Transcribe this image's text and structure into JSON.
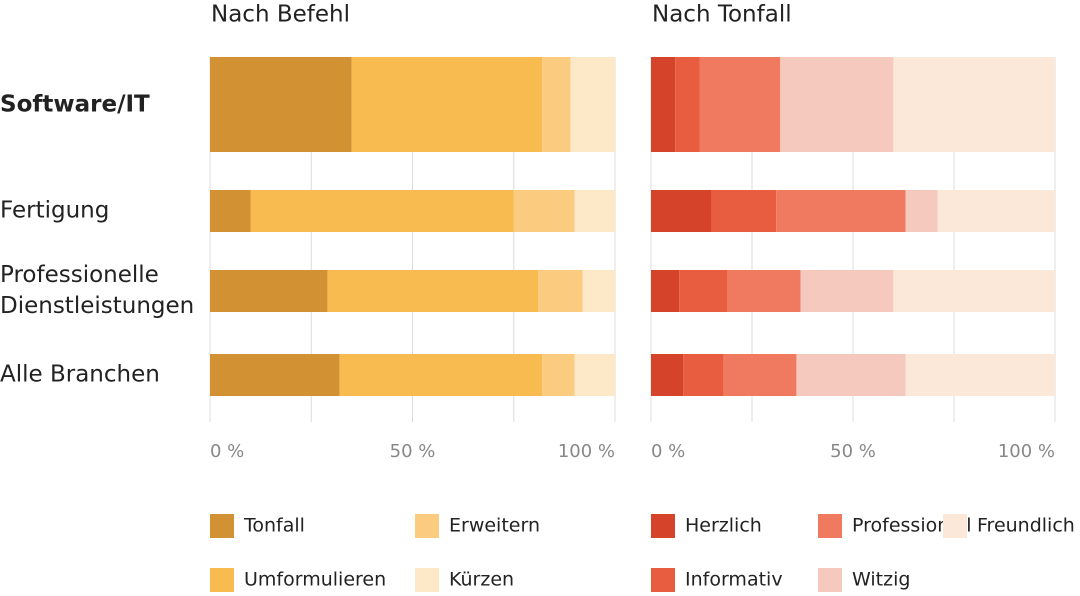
{
  "chart_data": [
    {
      "type": "stacked-bar",
      "orientation": "horizontal",
      "title": "Nach Befehl",
      "categories": [
        "Software/IT",
        "Fertigung",
        "Professionelle Dienstleistungen",
        "Alle Branchen"
      ],
      "series": [
        {
          "name": "Tonfall",
          "color": "#d29234",
          "values": [
            35,
            10,
            29,
            32
          ]
        },
        {
          "name": "Umformulieren",
          "color": "#f8bb50",
          "values": [
            47,
            65,
            52,
            50
          ]
        },
        {
          "name": "Erweitern",
          "color": "#fbcb80",
          "values": [
            7,
            15,
            11,
            8
          ]
        },
        {
          "name": "Kürzen",
          "color": "#fde8c8",
          "values": [
            11,
            10,
            8,
            10
          ]
        }
      ],
      "xlim": [
        0,
        100
      ],
      "xticks": [
        {
          "value": 0,
          "label": "0 %"
        },
        {
          "value": 50,
          "label": "50 %"
        },
        {
          "value": 100,
          "label": "100 %"
        }
      ],
      "xgrid": [
        0,
        25,
        50,
        75,
        100
      ],
      "grid": true
    },
    {
      "type": "stacked-bar",
      "orientation": "horizontal",
      "title": "Nach Tonfall",
      "series": [
        {
          "name": "Herzlich",
          "color": "#d5432a",
          "values": [
            6,
            15,
            7,
            8
          ]
        },
        {
          "name": "Informativ",
          "color": "#e85c3f",
          "values": [
            6,
            16,
            12,
            10
          ]
        },
        {
          "name": "Professionell",
          "color": "#ef7a5f",
          "values": [
            20,
            32,
            18,
            18
          ]
        },
        {
          "name": "Witzig",
          "color": "#f6c9bf",
          "values": [
            28,
            8,
            23,
            27
          ]
        },
        {
          "name": "Freundlich",
          "color": "#fbe8d8",
          "values": [
            40,
            29,
            40,
            37
          ]
        }
      ],
      "xlim": [
        0,
        100
      ],
      "xticks": [
        {
          "value": 0,
          "label": "0 %"
        },
        {
          "value": 50,
          "label": "50 %"
        },
        {
          "value": 100,
          "label": "100 %"
        }
      ],
      "xgrid": [
        0,
        25,
        50,
        75,
        100
      ],
      "grid": true
    }
  ]
}
